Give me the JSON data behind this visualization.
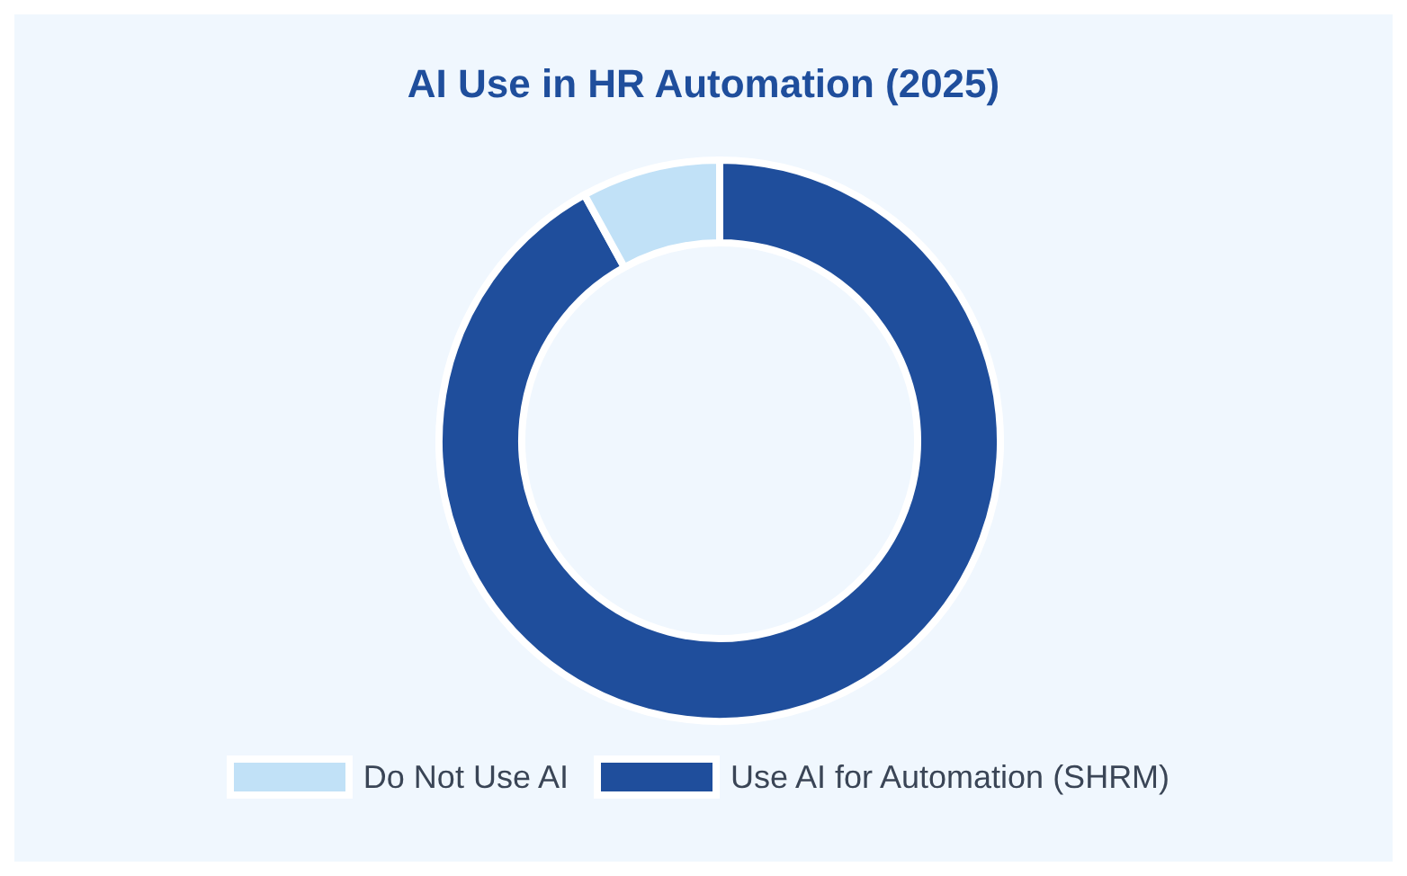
{
  "chart_data": {
    "type": "donut",
    "title": "AI Use in HR Automation (2025)",
    "categories": [
      "Use AI for Automation (SHRM)",
      "Do Not Use AI"
    ],
    "values": [
      92,
      8
    ],
    "colors": [
      "#1f4e9c",
      "#c1e1f7"
    ],
    "legend": "bottom"
  }
}
